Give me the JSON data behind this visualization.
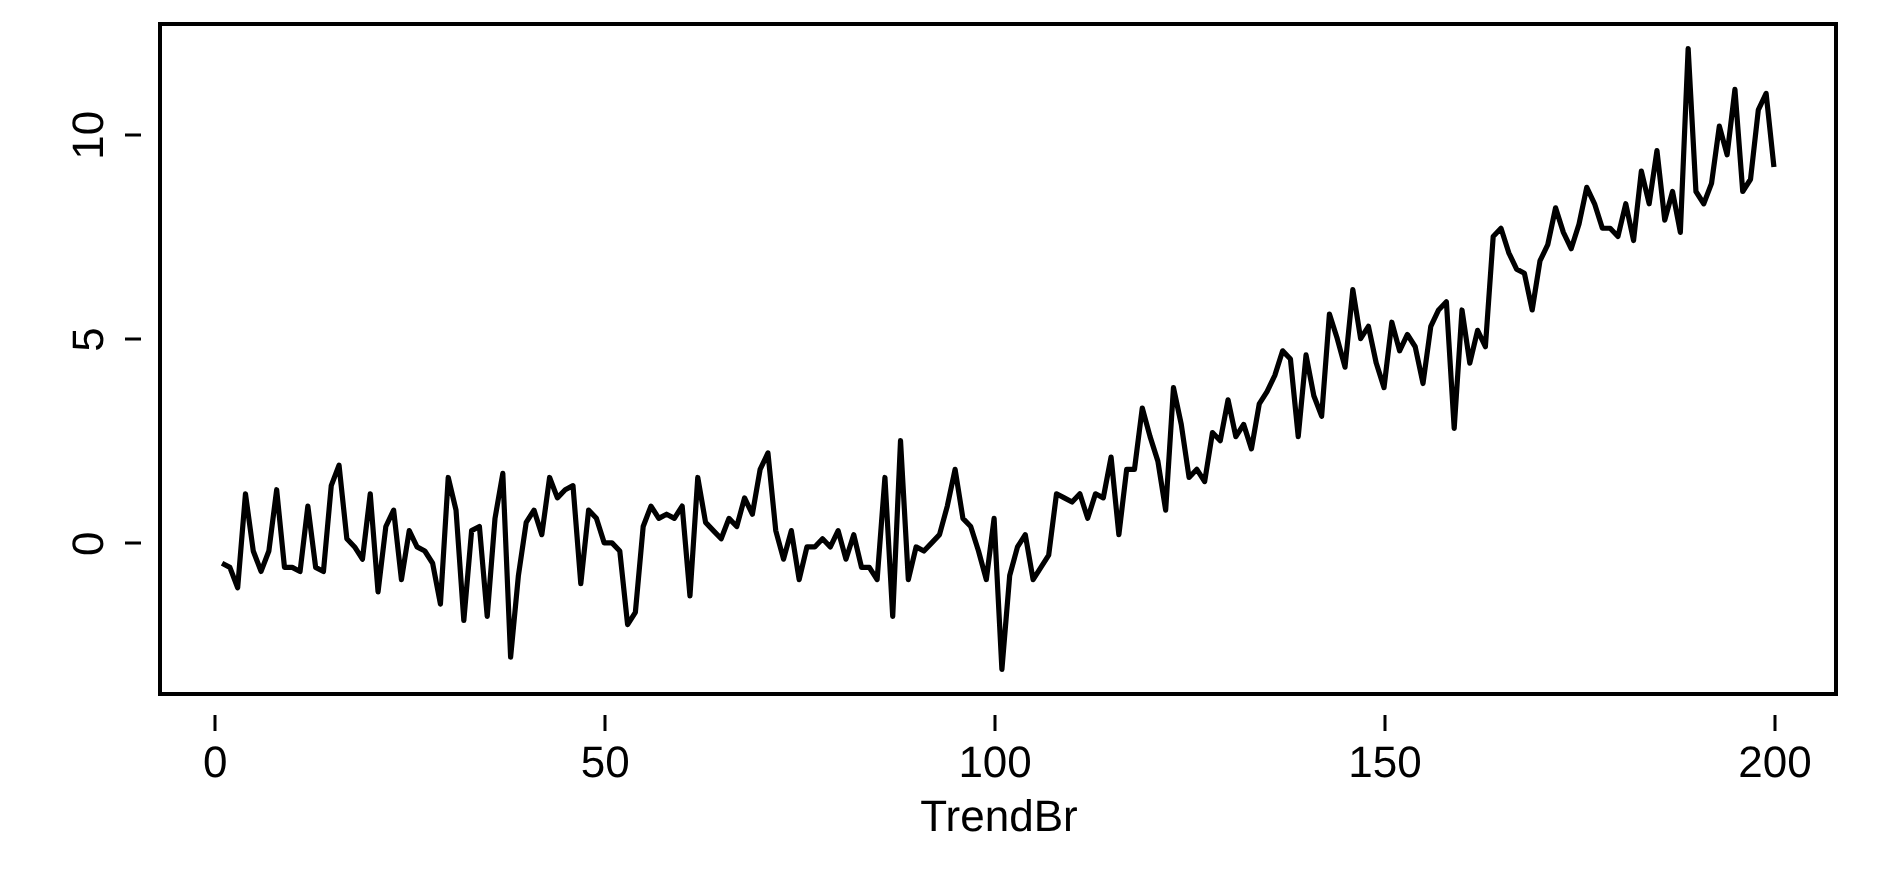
{
  "chart_data": {
    "type": "line",
    "xlabel": "TrendBr",
    "x": [
      1,
      2,
      3,
      4,
      5,
      6,
      7,
      8,
      9,
      10,
      11,
      12,
      13,
      14,
      15,
      16,
      17,
      18,
      19,
      20,
      21,
      22,
      23,
      24,
      25,
      26,
      27,
      28,
      29,
      30,
      31,
      32,
      33,
      34,
      35,
      36,
      37,
      38,
      39,
      40,
      41,
      42,
      43,
      44,
      45,
      46,
      47,
      48,
      49,
      50,
      51,
      52,
      53,
      54,
      55,
      56,
      57,
      58,
      59,
      60,
      61,
      62,
      63,
      64,
      65,
      66,
      67,
      68,
      69,
      70,
      71,
      72,
      73,
      74,
      75,
      76,
      77,
      78,
      79,
      80,
      81,
      82,
      83,
      84,
      85,
      86,
      87,
      88,
      89,
      90,
      91,
      92,
      93,
      94,
      95,
      96,
      97,
      98,
      99,
      100,
      101,
      102,
      103,
      104,
      105,
      106,
      107,
      108,
      109,
      110,
      111,
      112,
      113,
      114,
      115,
      116,
      117,
      118,
      119,
      120,
      121,
      122,
      123,
      124,
      125,
      126,
      127,
      128,
      129,
      130,
      131,
      132,
      133,
      134,
      135,
      136,
      137,
      138,
      139,
      140,
      141,
      142,
      143,
      144,
      145,
      146,
      147,
      148,
      149,
      150,
      151,
      152,
      153,
      154,
      155,
      156,
      157,
      158,
      159,
      160,
      161,
      162,
      163,
      164,
      165,
      166,
      167,
      168,
      169,
      170,
      171,
      172,
      173,
      174,
      175,
      176,
      177,
      178,
      179,
      180,
      181,
      182,
      183,
      184,
      185,
      186,
      187,
      188,
      189,
      190,
      191,
      192,
      193,
      194,
      195,
      196,
      197,
      198,
      199,
      200
    ],
    "series": [
      {
        "color": "#000000",
        "values": [
          -0.5,
          -0.6,
          -1.1,
          1.2,
          -0.2,
          -0.7,
          -0.2,
          1.3,
          -0.6,
          -0.6,
          -0.7,
          0.9,
          -0.6,
          -0.7,
          1.4,
          1.9,
          0.1,
          -0.1,
          -0.4,
          1.2,
          -1.2,
          0.4,
          0.8,
          -0.9,
          0.3,
          -0.1,
          -0.2,
          -0.5,
          -1.5,
          1.6,
          0.8,
          -1.9,
          0.3,
          0.4,
          -1.8,
          0.6,
          1.7,
          -2.8,
          -0.8,
          0.5,
          0.8,
          0.2,
          1.6,
          1.1,
          1.3,
          1.4,
          -1.0,
          0.8,
          0.6,
          0.0,
          0.0,
          -0.2,
          -2.0,
          -1.7,
          0.4,
          0.9,
          0.6,
          0.7,
          0.6,
          0.9,
          -1.3,
          1.6,
          0.5,
          0.3,
          0.1,
          0.6,
          0.4,
          1.1,
          0.7,
          1.8,
          2.2,
          0.3,
          -0.4,
          0.3,
          -0.9,
          -0.1,
          -0.1,
          0.1,
          -0.1,
          0.3,
          -0.4,
          0.2,
          -0.6,
          -0.6,
          -0.9,
          1.6,
          -1.8,
          2.5,
          -0.9,
          -0.1,
          -0.2,
          0.0,
          0.2,
          0.9,
          1.8,
          0.6,
          0.4,
          -0.2,
          -0.9,
          0.6,
          -3.1,
          -0.8,
          -0.1,
          0.2,
          -0.9,
          -0.6,
          -0.3,
          1.2,
          1.1,
          1.0,
          1.2,
          0.6,
          1.2,
          1.1,
          2.1,
          0.2,
          1.8,
          1.8,
          3.3,
          2.6,
          2.0,
          0.8,
          3.8,
          2.9,
          1.6,
          1.8,
          1.5,
          2.7,
          2.5,
          3.5,
          2.6,
          2.9,
          2.3,
          3.4,
          3.7,
          4.1,
          4.7,
          4.5,
          2.6,
          4.6,
          3.6,
          3.1,
          5.6,
          5.0,
          4.3,
          6.2,
          5.0,
          5.3,
          4.4,
          3.8,
          5.4,
          4.7,
          5.1,
          4.8,
          3.9,
          5.3,
          5.7,
          5.9,
          2.8,
          5.7,
          4.4,
          5.2,
          4.8,
          7.5,
          7.7,
          7.1,
          6.7,
          6.6,
          5.7,
          6.9,
          7.3,
          8.2,
          7.6,
          7.2,
          7.8,
          8.7,
          8.3,
          7.7,
          7.7,
          7.5,
          8.3,
          7.4,
          9.1,
          8.3,
          9.6,
          7.9,
          8.6,
          7.6,
          12.1,
          8.6,
          8.3,
          8.8,
          10.2,
          9.5,
          11.1,
          8.6,
          8.9,
          10.6,
          11.0,
          9.2
        ]
      }
    ],
    "xlim": [
      -6.96,
      207.96
    ],
    "xticks": [
      0,
      50,
      100,
      150,
      200
    ],
    "ylim": [
      -3.7,
      12.7
    ],
    "yticks": [
      0,
      5,
      10
    ],
    "grid": false,
    "line_style": "solid",
    "marker": "none"
  }
}
